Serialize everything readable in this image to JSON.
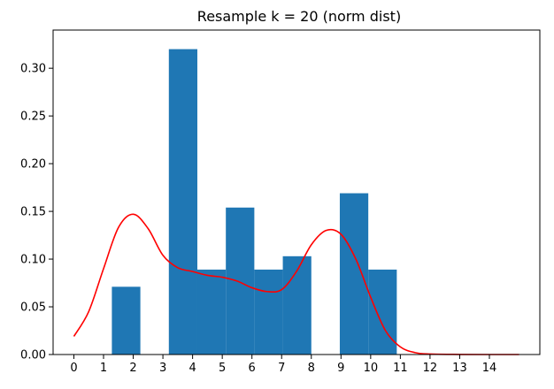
{
  "chart_data": {
    "type": "bar",
    "title": "Resample k = 20 (norm dist)",
    "xlabel": "",
    "ylabel": "",
    "xlim": [
      -0.7,
      15.7
    ],
    "ylim": [
      0,
      0.34
    ],
    "grid": false,
    "x_ticks": [
      0,
      1,
      2,
      3,
      4,
      5,
      6,
      7,
      8,
      9,
      10,
      11,
      12,
      13,
      14
    ],
    "y_ticks": [
      0.0,
      0.05,
      0.1,
      0.15,
      0.2,
      0.25,
      0.3
    ],
    "y_tick_labels": [
      "0.00",
      "0.05",
      "0.10",
      "0.15",
      "0.20",
      "0.25",
      "0.30"
    ],
    "bar_color": "#1f77b4",
    "line_color": "#ff0000",
    "bins": [
      {
        "x0": 1.28,
        "x1": 2.24,
        "value": 0.071
      },
      {
        "x0": 3.2,
        "x1": 4.16,
        "value": 0.32
      },
      {
        "x0": 4.16,
        "x1": 5.12,
        "value": 0.089
      },
      {
        "x0": 5.12,
        "x1": 6.08,
        "value": 0.154
      },
      {
        "x0": 6.08,
        "x1": 7.04,
        "value": 0.089
      },
      {
        "x0": 7.04,
        "x1": 8.0,
        "value": 0.103
      },
      {
        "x0": 8.96,
        "x1": 9.92,
        "value": 0.169
      },
      {
        "x0": 9.92,
        "x1": 10.88,
        "value": 0.089
      }
    ],
    "kde": {
      "x": [
        0,
        0.5,
        1,
        1.5,
        2,
        2.5,
        3,
        3.5,
        4,
        4.5,
        5,
        5.5,
        6,
        6.5,
        7,
        7.5,
        8,
        8.5,
        9,
        9.5,
        10,
        10.5,
        11,
        11.5,
        12,
        13,
        14,
        15
      ],
      "y": [
        0.019,
        0.045,
        0.09,
        0.133,
        0.147,
        0.132,
        0.104,
        0.091,
        0.087,
        0.083,
        0.081,
        0.077,
        0.07,
        0.066,
        0.068,
        0.087,
        0.115,
        0.13,
        0.126,
        0.1,
        0.06,
        0.025,
        0.008,
        0.002,
        0.0005,
        0.0001,
        0.0,
        0.0
      ]
    }
  }
}
